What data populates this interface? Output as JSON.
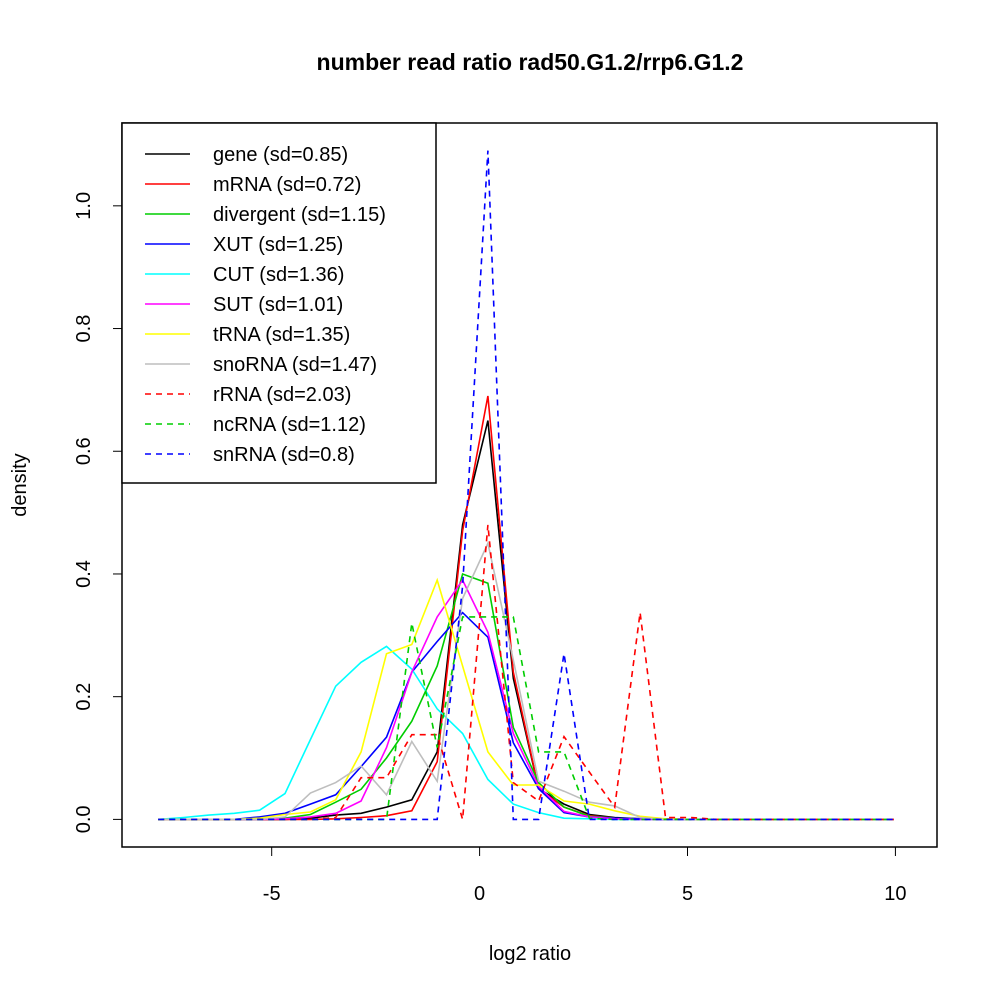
{
  "chart_data": {
    "type": "line",
    "title": "number read ratio rad50.G1.2/rrp6.G1.2",
    "xlabel": "log2 ratio",
    "ylabel": "density",
    "xlim": [
      -8.6,
      11.0
    ],
    "ylim": [
      -0.045,
      1.135
    ],
    "xticks": [
      -5,
      0,
      5,
      10
    ],
    "xtick_labels": [
      "-5",
      "0",
      "5",
      "10"
    ],
    "yticks": [
      0,
      0.2,
      0.4,
      0.6,
      0.8,
      1.0
    ],
    "ytick_labels": [
      "0.0",
      "0.2",
      "0.4",
      "0.6",
      "0.8",
      "1.0"
    ],
    "grid": false,
    "legend_position": "top-left",
    "x": [
      -7.73,
      -7.12,
      -6.51,
      -5.9,
      -5.29,
      -4.68,
      -4.07,
      -3.46,
      -2.85,
      -2.24,
      -1.63,
      -1.02,
      -0.41,
      0.2,
      0.81,
      1.42,
      2.03,
      2.64,
      3.25,
      3.86,
      4.47,
      5.08,
      5.69,
      6.3,
      6.91,
      7.52,
      8.13,
      8.74,
      9.35,
      9.96
    ],
    "series": [
      {
        "name": "gene (sd=0.85)",
        "color": "#000000",
        "dash": false,
        "values": [
          0,
          0,
          0,
          0,
          0,
          0,
          0.002,
          0.007,
          0.01,
          0.02,
          0.032,
          0.11,
          0.48,
          0.65,
          0.23,
          0.05,
          0.025,
          0.008,
          0.003,
          0.001,
          0,
          0,
          0,
          0,
          0,
          0,
          0,
          0,
          0,
          0
        ]
      },
      {
        "name": "mRNA (sd=0.72)",
        "color": "#ff0000",
        "dash": false,
        "values": [
          0,
          0,
          0,
          0,
          0,
          0,
          0,
          0.001,
          0.003,
          0.006,
          0.014,
          0.094,
          0.47,
          0.69,
          0.24,
          0.05,
          0.02,
          0.006,
          0.002,
          0.001,
          0.001,
          0,
          0,
          0,
          0,
          0,
          0,
          0,
          0,
          0
        ]
      },
      {
        "name": "divergent (sd=1.15)",
        "color": "#00cd00",
        "dash": false,
        "values": [
          0,
          0,
          0,
          0,
          0,
          0.002,
          0.008,
          0.028,
          0.049,
          0.1,
          0.16,
          0.25,
          0.4,
          0.385,
          0.15,
          0.06,
          0.02,
          0.005,
          0.002,
          0.001,
          0,
          0,
          0,
          0,
          0,
          0,
          0,
          0,
          0,
          0
        ]
      },
      {
        "name": "XUT (sd=1.25)",
        "color": "#0000ff",
        "dash": false,
        "values": [
          0,
          0,
          0,
          0,
          0.004,
          0.01,
          0.025,
          0.04,
          0.086,
          0.134,
          0.24,
          0.29,
          0.337,
          0.297,
          0.125,
          0.05,
          0.011,
          0.004,
          0.002,
          0.001,
          0,
          0,
          0,
          0,
          0,
          0,
          0,
          0,
          0,
          0
        ]
      },
      {
        "name": "CUT (sd=1.36)",
        "color": "#00ffff",
        "dash": false,
        "values": [
          0,
          0.003,
          0.007,
          0.01,
          0.015,
          0.042,
          0.13,
          0.217,
          0.256,
          0.282,
          0.245,
          0.18,
          0.14,
          0.065,
          0.025,
          0.011,
          0.002,
          0.001,
          0,
          0,
          0,
          0,
          0,
          0,
          0,
          0,
          0,
          0,
          0,
          0
        ]
      },
      {
        "name": "SUT (sd=1.01)",
        "color": "#ff00ff",
        "dash": false,
        "values": [
          0,
          0,
          0,
          0,
          0,
          0.001,
          0.004,
          0.01,
          0.03,
          0.117,
          0.24,
          0.33,
          0.39,
          0.305,
          0.14,
          0.054,
          0.013,
          0.004,
          0.001,
          0,
          0,
          0,
          0,
          0,
          0,
          0,
          0,
          0,
          0,
          0
        ]
      },
      {
        "name": "tRNA (sd=1.35)",
        "color": "#ffff00",
        "dash": false,
        "values": [
          0,
          0,
          0,
          0,
          0.002,
          0.008,
          0.012,
          0.032,
          0.11,
          0.27,
          0.285,
          0.39,
          0.25,
          0.11,
          0.056,
          0.056,
          0.03,
          0.025,
          0.014,
          0.005,
          0.001,
          0,
          0,
          0,
          0,
          0,
          0,
          0,
          0,
          0
        ]
      },
      {
        "name": "snoRNA (sd=1.47)",
        "color": "#bebebe",
        "dash": false,
        "values": [
          0,
          0,
          0,
          0,
          0,
          0.004,
          0.043,
          0.06,
          0.087,
          0.04,
          0.127,
          0.062,
          0.36,
          0.45,
          0.26,
          0.062,
          0.046,
          0.028,
          0.022,
          0.003,
          0,
          0,
          0,
          0,
          0,
          0,
          0,
          0,
          0,
          0
        ]
      },
      {
        "name": "rRNA (sd=2.03)",
        "color": "#ff0000",
        "dash": true,
        "values": [
          0,
          0,
          0,
          0,
          0,
          0,
          0,
          0.003,
          0.068,
          0.068,
          0.138,
          0.138,
          0,
          0.48,
          0.06,
          0.03,
          0.135,
          0.077,
          0.02,
          0.337,
          0.003,
          0.003,
          0,
          0,
          0,
          0,
          0,
          0,
          0,
          0
        ]
      },
      {
        "name": "ncRNA (sd=1.12)",
        "color": "#00cd00",
        "dash": true,
        "values": [
          0,
          0,
          0,
          0,
          0,
          0,
          0,
          0,
          0,
          0,
          0.32,
          0.117,
          0.33,
          0.33,
          0.33,
          0.11,
          0.11,
          0.002,
          0,
          0,
          0,
          0,
          0,
          0,
          0,
          0,
          0,
          0,
          0,
          0
        ]
      },
      {
        "name": "snRNA (sd=0.8)",
        "color": "#0000ff",
        "dash": true,
        "values": [
          0,
          0,
          0,
          0,
          0,
          0,
          0,
          0,
          0,
          0,
          0,
          0,
          0.38,
          1.09,
          0,
          0,
          0.27,
          0,
          0,
          0,
          0,
          0,
          0,
          0,
          0,
          0,
          0,
          0,
          0,
          0
        ]
      }
    ]
  }
}
